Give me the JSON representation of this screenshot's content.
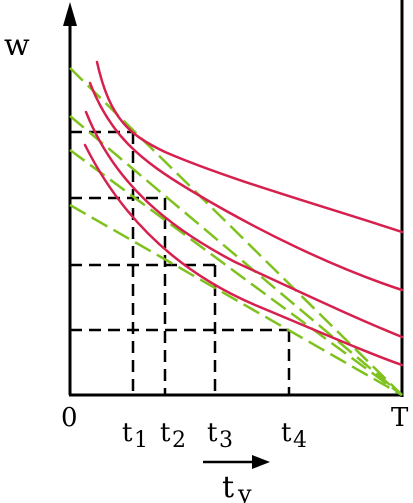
{
  "labels": {
    "y_axis": "w",
    "x_axis_main": "t",
    "x_axis_sub": "y",
    "origin": "0",
    "end": "T",
    "t1": "t",
    "t1_sub": "1",
    "t2": "t",
    "t2_sub": "2",
    "t3": "t",
    "t3_sub": "3",
    "t4": "t",
    "t4_sub": "4"
  },
  "colors": {
    "axis": "#000000",
    "curve": "#d6204e",
    "tangent": "#7fc21f",
    "guide": "#000000"
  }
}
